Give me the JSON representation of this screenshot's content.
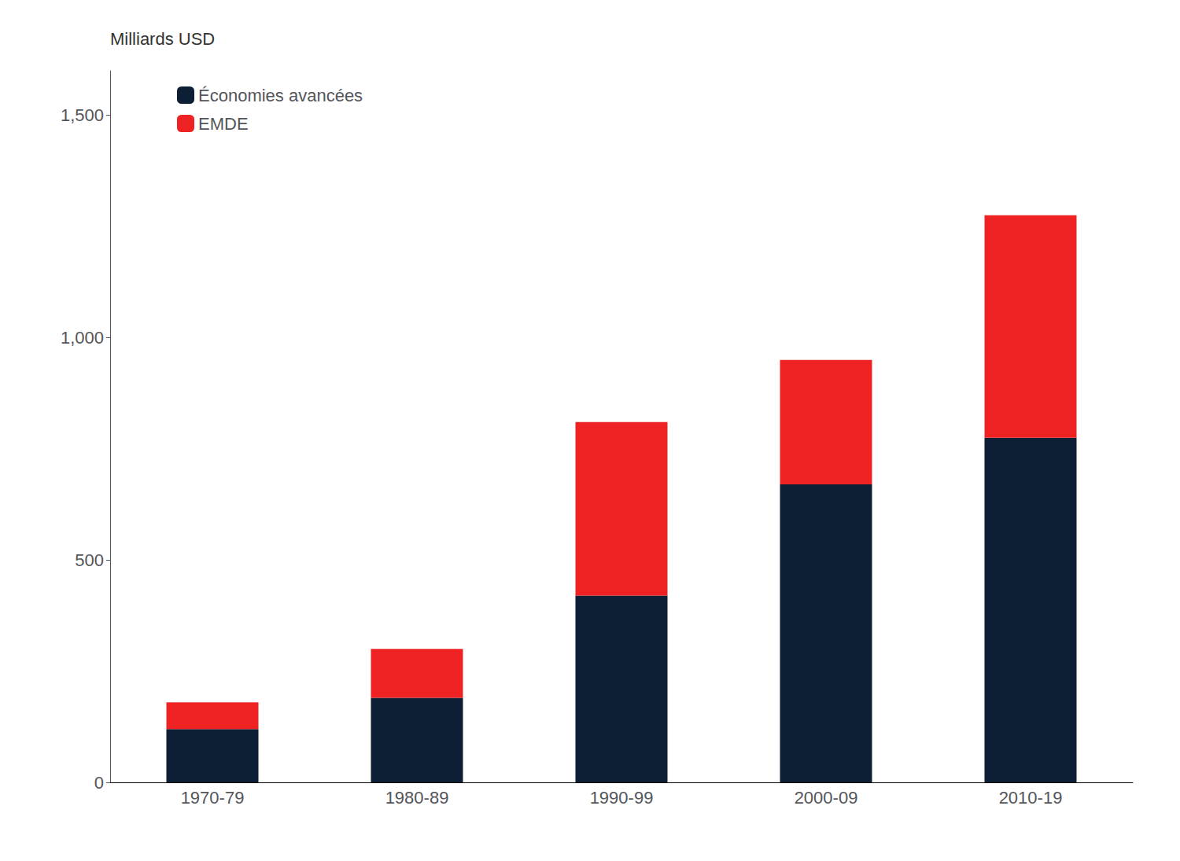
{
  "chart_data": {
    "type": "bar",
    "stacked": true,
    "categories": [
      "1970-79",
      "1980-89",
      "1990-99",
      "2000-09",
      "2010-19"
    ],
    "series": [
      {
        "name": "Économies avancées",
        "color": "#0d1f35",
        "values": [
          120,
          190,
          420,
          670,
          775
        ]
      },
      {
        "name": "EMDE",
        "color": "#ee2222",
        "values": [
          60,
          110,
          390,
          280,
          500
        ]
      }
    ],
    "ylabel": "Milliards USD",
    "ylim": [
      0,
      1600
    ],
    "yticks": [
      0,
      500,
      {
        "value": 1000,
        "label": "1,000"
      },
      {
        "value": 1500,
        "label": "1,500"
      }
    ],
    "grid": false,
    "legend": "upper left"
  }
}
